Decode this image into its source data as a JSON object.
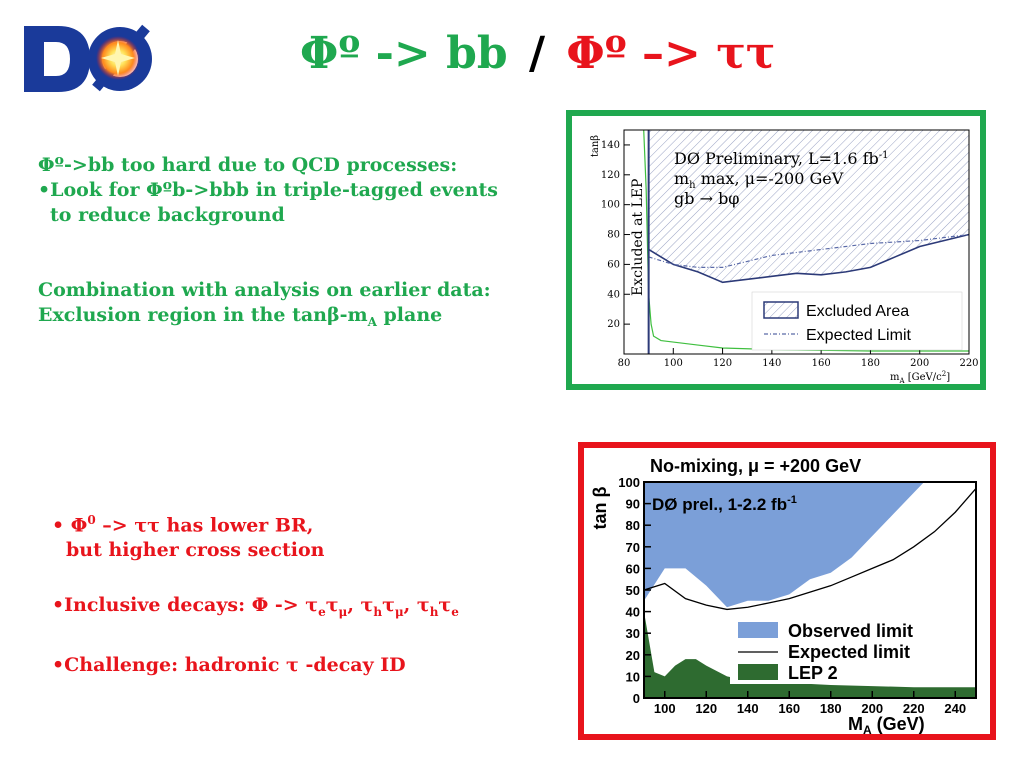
{
  "logo": {
    "text": "DØ"
  },
  "title": {
    "left": "Φº -> bb",
    "separator": "/",
    "right": "Φº –> ττ"
  },
  "top_text": {
    "line1": "Φº->bb too hard due to QCD processes:",
    "line2": "•Look for Φºb->bbb in triple-tagged events",
    "line3": "to reduce background",
    "line4": "Combination with analysis on earlier data:",
    "line5a": "Exclusion region in the tanβ-m",
    "line5sub": "A",
    "line5b": " plane"
  },
  "bottom_text": {
    "b1_prefix": "• Φ",
    "b1_sup": "0",
    "b1_rest": " –> ττ  has lower BR,",
    "b1_line2": "but higher cross section",
    "b2_prefix": "•Inclusive decays: Φ -> τ",
    "b2_s1": "e",
    "b2_t2": "τ",
    "b2_s2": "μ",
    "b2_c1": ", τ",
    "b2_s3": "h",
    "b2_t4": "τ",
    "b2_s4": "μ",
    "b2_c2": ", τ",
    "b2_s5": "h",
    "b2_t6": "τ",
    "b2_s6": "e",
    "b3": "•Challenge: hadronic τ -decay ID"
  },
  "colors": {
    "green": "#1fa84f",
    "red": "#e8141c",
    "blue_region": "#7b9fd8",
    "lep_green": "#2e6b30"
  },
  "chart_data": [
    {
      "type": "line",
      "title": "DØ Preliminary, L=1.6 fb",
      "title_sup": "-1",
      "subtitle1": "m",
      "subtitle1_sub": "h",
      "subtitle1_rest": " max, μ=-200 GeV",
      "subtitle2": "gb → bφ",
      "xlabel": "m",
      "xlabel_sub": "A",
      "xlabel_rest": " [GeV/c",
      "xlabel_sup": "2",
      "xlabel_end": "]",
      "ylabel": "tanβ",
      "xlim": [
        80,
        220
      ],
      "ylim": [
        0,
        150
      ],
      "x_ticks": [
        "80",
        "100",
        "120",
        "140",
        "160",
        "180",
        "200",
        "220"
      ],
      "y_ticks": [
        "20",
        "40",
        "60",
        "80",
        "100",
        "120",
        "140"
      ],
      "lep_label": "Excluded at LEP",
      "legend": [
        "Excluded Area",
        "Expected Limit"
      ],
      "series": [
        {
          "name": "Excluded Area",
          "x": [
            90,
            95,
            100,
            110,
            120,
            130,
            140,
            150,
            160,
            170,
            180,
            190,
            200,
            210,
            220
          ],
          "y": [
            70,
            65,
            60,
            55,
            48,
            50,
            52,
            54,
            53,
            55,
            58,
            65,
            72,
            76,
            80
          ]
        },
        {
          "name": "Expected Limit",
          "x": [
            90,
            100,
            110,
            120,
            130,
            140,
            150,
            160,
            170,
            180,
            190,
            200,
            210,
            220
          ],
          "y": [
            65,
            60,
            58,
            58,
            62,
            66,
            68,
            70,
            72,
            74,
            75,
            76,
            78,
            80
          ]
        },
        {
          "name": "LEP",
          "x": [
            88,
            89,
            90,
            91,
            92,
            95,
            100,
            110,
            120,
            140,
            160,
            180,
            200,
            220
          ],
          "y": [
            150,
            110,
            40,
            20,
            12,
            9,
            8,
            6,
            4,
            3,
            2.5,
            2,
            2,
            2
          ]
        }
      ]
    },
    {
      "type": "area",
      "title": "No-mixing, μ = +200 GeV",
      "subtitle": "DØ prel., 1-2.2 fb",
      "subtitle_sup": "-1",
      "xlabel": "M",
      "xlabel_sub": "A",
      "xlabel_rest": " (GeV)",
      "ylabel": "tan β",
      "xlim": [
        90,
        250
      ],
      "ylim": [
        0,
        100
      ],
      "x_ticks": [
        "100",
        "120",
        "140",
        "160",
        "180",
        "200",
        "220",
        "240"
      ],
      "y_ticks": [
        "0",
        "10",
        "20",
        "30",
        "40",
        "50",
        "60",
        "70",
        "80",
        "90",
        "100"
      ],
      "legend": [
        "Observed limit",
        "Expected limit",
        "LEP 2"
      ],
      "series": [
        {
          "name": "Observed limit",
          "x": [
            90,
            100,
            110,
            120,
            130,
            140,
            150,
            160,
            170,
            180,
            190,
            200,
            210,
            220,
            225
          ],
          "y": [
            45,
            60,
            60,
            52,
            42,
            45,
            45,
            48,
            55,
            58,
            65,
            75,
            85,
            95,
            100
          ]
        },
        {
          "name": "Expected limit",
          "x": [
            90,
            100,
            110,
            120,
            130,
            140,
            150,
            160,
            170,
            180,
            190,
            200,
            210,
            220,
            230,
            240,
            250
          ],
          "y": [
            50,
            53,
            46,
            43,
            41,
            42,
            44,
            46,
            49,
            52,
            56,
            60,
            64,
            70,
            77,
            86,
            97
          ]
        },
        {
          "name": "LEP 2",
          "x": [
            90,
            95,
            100,
            105,
            110,
            115,
            120,
            130,
            140,
            160,
            180,
            200,
            220,
            240,
            250
          ],
          "y": [
            40,
            12,
            10,
            15,
            18,
            18,
            15,
            10,
            8,
            7,
            6,
            5.5,
            5,
            5,
            5
          ]
        }
      ]
    }
  ]
}
